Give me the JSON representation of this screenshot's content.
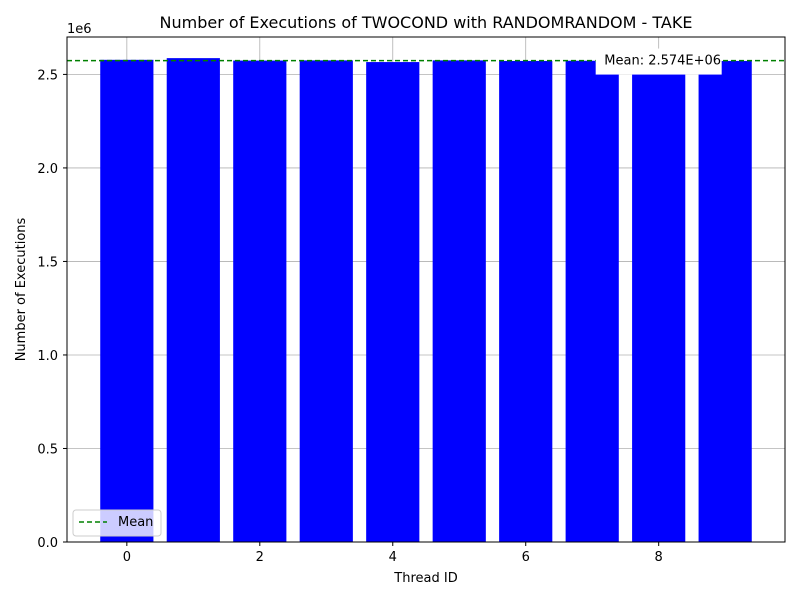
{
  "chart_data": {
    "type": "bar",
    "title": "Number of Executions of TWOCOND with RANDOMRANDOM - TAKE",
    "xlabel": "Thread ID",
    "ylabel": "Number of Executions",
    "y_offset_label": "1e6",
    "categories": [
      0,
      1,
      2,
      3,
      4,
      5,
      6,
      7,
      8,
      9
    ],
    "values": [
      2578000,
      2587000,
      2574000,
      2575000,
      2566000,
      2575000,
      2572000,
      2573000,
      2570000,
      2572000
    ],
    "bar_color": "#0000ff",
    "xlim": [
      -0.9,
      9.9
    ],
    "ylim": [
      0,
      2700000
    ],
    "x_ticks": [
      0,
      2,
      4,
      6,
      8
    ],
    "x_tick_labels": [
      "0",
      "2",
      "4",
      "6",
      "8"
    ],
    "y_ticks": [
      0,
      500000,
      1000000,
      1500000,
      2000000,
      2500000
    ],
    "y_tick_labels": [
      "0.0",
      "0.5",
      "1.0",
      "1.5",
      "2.0",
      "2.5"
    ],
    "grid": true,
    "mean": {
      "value": 2574000,
      "label": "Mean: 2.574E+06",
      "color": "#008000",
      "style": "dashed",
      "annotation_x": 8.0
    },
    "legend": {
      "location": "lower-left",
      "entries": [
        {
          "label": "Mean",
          "color": "#008000",
          "style": "dashed"
        }
      ]
    }
  }
}
